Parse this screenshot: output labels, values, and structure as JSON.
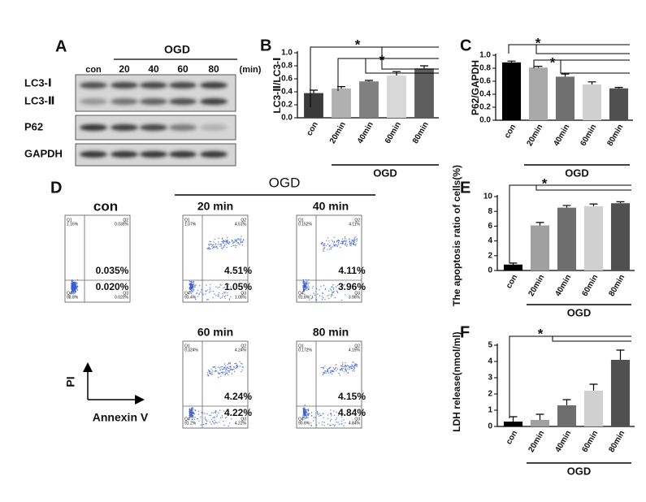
{
  "panel_a": {
    "label": "A",
    "group_label": "OGD",
    "lanes": [
      "con",
      "20",
      "40",
      "60",
      "80"
    ],
    "unit": "(min)",
    "rows": [
      "LC3-Ⅰ",
      "LC3-Ⅱ",
      "P62",
      "GAPDH"
    ]
  },
  "panel_d": {
    "label": "D",
    "group_label": "OGD",
    "y_axis": "PI",
    "x_axis": "Annexin V",
    "plots": [
      {
        "title": "con",
        "upper_right": "0.035%",
        "lower_right": "0.020%",
        "quadrants": [
          {
            "name": "Q1",
            "value": "1.16%"
          },
          {
            "name": "Q2",
            "value": "0.035%"
          },
          {
            "name": "Q3",
            "value": "0.020%"
          },
          {
            "name": "Q4",
            "value": "98.8%"
          }
        ]
      },
      {
        "title": "20 min",
        "upper_right": "4.51%",
        "lower_right": "1.05%",
        "quadrants": [
          {
            "name": "Q1",
            "value": "1.07%"
          },
          {
            "name": "Q2",
            "value": "4.51%"
          },
          {
            "name": "Q3",
            "value": "1.05%"
          },
          {
            "name": "Q4",
            "value": "93.4%"
          }
        ]
      },
      {
        "title": "40 min",
        "upper_right": "4.11%",
        "lower_right": "3.96%",
        "quadrants": [
          {
            "name": "Q1",
            "value": "0.152%"
          },
          {
            "name": "Q2",
            "value": "4.11%"
          },
          {
            "name": "Q3",
            "value": "3.96%"
          },
          {
            "name": "Q4",
            "value": "91.8%"
          }
        ]
      },
      {
        "title": "60 min",
        "upper_right": "4.24%",
        "lower_right": "4.22%",
        "quadrants": [
          {
            "name": "Q1",
            "value": "0.324%"
          },
          {
            "name": "Q2",
            "value": "4.24%"
          },
          {
            "name": "Q3",
            "value": "4.22%"
          },
          {
            "name": "Q4",
            "value": "91.2%"
          }
        ]
      },
      {
        "title": "80 min",
        "upper_right": "4.15%",
        "lower_right": "4.84%",
        "quadrants": [
          {
            "name": "Q1",
            "value": "0.172%"
          },
          {
            "name": "Q2",
            "value": "4.15%"
          },
          {
            "name": "Q3",
            "value": "4.84%"
          },
          {
            "name": "Q4",
            "value": "90.8%"
          }
        ]
      }
    ]
  },
  "chart_data": [
    {
      "type": "bar",
      "panel": "B",
      "ylabel": "LC3-Ⅱ/LC3-Ⅰ",
      "categories": [
        "con",
        "20min",
        "40min",
        "60min",
        "80min"
      ],
      "values": [
        0.38,
        0.45,
        0.56,
        0.65,
        0.76
      ],
      "errors": [
        0.045,
        0.03,
        0.015,
        0.06,
        0.04
      ],
      "colors": [
        "#3a3a3a",
        "#b0b0b0",
        "#808080",
        "#d8d8d8",
        "#5e5e5e"
      ],
      "ylim": [
        0,
        1.0
      ],
      "yticks": [
        {
          "value": 0,
          "label": "0.0"
        },
        0.2,
        0.4,
        0.6,
        0.8,
        {
          "value": 1.0,
          "label": "1.0"
        }
      ],
      "group_label": "OGD",
      "annotations": [
        "*",
        "*"
      ]
    },
    {
      "type": "bar",
      "panel": "C",
      "ylabel": "P62/GAPDH",
      "categories": [
        "con",
        "20min",
        "40min",
        "60min",
        "80min"
      ],
      "values": [
        0.89,
        0.81,
        0.67,
        0.55,
        0.49
      ],
      "errors": [
        0.02,
        0.02,
        0.04,
        0.04,
        0.015
      ],
      "colors": [
        "#000000",
        "#a8a8a8",
        "#707070",
        "#d0d0d0",
        "#505050"
      ],
      "ylim": [
        0,
        1.0
      ],
      "yticks": [
        {
          "value": 0,
          "label": "0.0"
        },
        0.2,
        0.4,
        0.6,
        0.8,
        {
          "value": 1.0,
          "label": "1.0"
        }
      ],
      "group_label": "OGD",
      "annotations": [
        "*",
        "*"
      ]
    },
    {
      "type": "bar",
      "panel": "E",
      "ylabel": "The apoptosis ratio of cells(%)",
      "categories": [
        "con",
        "20min",
        "40min",
        "60min",
        "80min"
      ],
      "values": [
        0.8,
        6.1,
        8.5,
        8.7,
        9.1
      ],
      "errors": [
        0.2,
        0.4,
        0.3,
        0.3,
        0.2
      ],
      "colors": [
        "#000000",
        "#a0a0a0",
        "#6e6e6e",
        "#d0d0d0",
        "#505050"
      ],
      "ylim": [
        0,
        10
      ],
      "yticks": [
        0,
        2,
        4,
        6,
        8,
        10
      ],
      "group_label": "OGD",
      "annotations": [
        "*"
      ]
    },
    {
      "type": "bar",
      "panel": "F",
      "ylabel": "LDH release(nmol/ml)",
      "categories": [
        "con",
        "20min",
        "40min",
        "60min",
        "80min"
      ],
      "values": [
        0.3,
        0.4,
        1.3,
        2.2,
        4.1
      ],
      "errors": [
        0.3,
        0.35,
        0.35,
        0.4,
        0.6
      ],
      "colors": [
        "#000000",
        "#a0a0a0",
        "#6e6e6e",
        "#d0d0d0",
        "#505050"
      ],
      "ylim": [
        0,
        5
      ],
      "yticks": [
        0,
        1,
        2,
        3,
        4,
        5
      ],
      "group_label": "OGD",
      "annotations": [
        "*"
      ]
    }
  ]
}
